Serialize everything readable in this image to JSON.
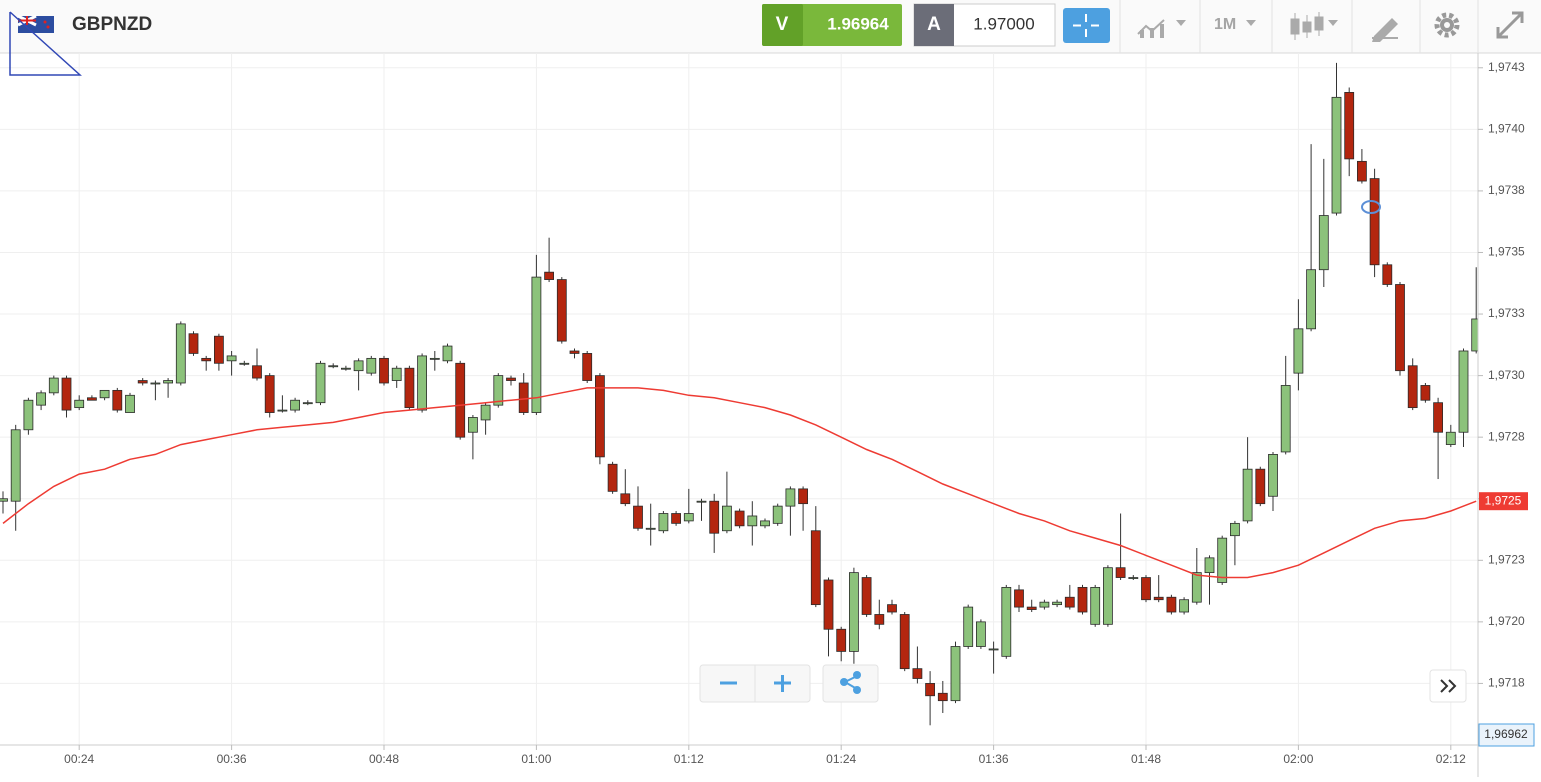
{
  "header": {
    "symbol": "GBPNZD",
    "sell_label": "V",
    "sell_price": "1.96964",
    "buy_label": "A",
    "buy_price": "1.97000",
    "timeframe": "1M"
  },
  "chart_data": {
    "type": "candlestick",
    "x": [
      "00:18",
      "00:19",
      "00:20",
      "00:21",
      "00:22",
      "00:23",
      "00:24",
      "00:25",
      "00:26",
      "00:27",
      "00:28",
      "00:29",
      "00:30",
      "00:31",
      "00:32",
      "00:33",
      "00:34",
      "00:35",
      "00:36",
      "00:37",
      "00:38",
      "00:39",
      "00:40",
      "00:41",
      "00:42",
      "00:43",
      "00:44",
      "00:45",
      "00:46",
      "00:47",
      "00:48",
      "00:49",
      "00:50",
      "00:51",
      "00:52",
      "00:53",
      "00:54",
      "00:55",
      "00:56",
      "00:57",
      "00:58",
      "00:59",
      "01:00",
      "01:01",
      "01:02",
      "01:03",
      "01:04",
      "01:05",
      "01:06",
      "01:07",
      "01:08",
      "01:09",
      "01:10",
      "01:11",
      "01:12",
      "01:13",
      "01:14",
      "01:15",
      "01:16",
      "01:17",
      "01:18",
      "01:19",
      "01:20",
      "01:21",
      "01:22",
      "01:23",
      "01:24",
      "01:25",
      "01:26",
      "01:27",
      "01:28",
      "01:29",
      "01:30",
      "01:31",
      "01:32",
      "01:33",
      "01:34",
      "01:35",
      "01:36",
      "01:37",
      "01:38",
      "01:39",
      "01:40",
      "01:41",
      "01:42",
      "01:43",
      "01:44",
      "01:45",
      "01:46",
      "01:47",
      "01:48",
      "01:49",
      "01:50",
      "01:51",
      "01:52",
      "01:53",
      "01:54",
      "01:55",
      "01:56",
      "01:57",
      "01:58",
      "01:59",
      "02:00",
      "02:01",
      "02:02",
      "02:03",
      "02:04",
      "02:05",
      "02:06",
      "02:07",
      "02:08",
      "02:09",
      "02:10",
      "02:11",
      "02:12",
      "02:13",
      "02:14"
    ],
    "open": [
      1.97249,
      1.97249,
      1.97278,
      1.97288,
      1.97293,
      1.97299,
      1.97287,
      1.97291,
      1.97291,
      1.97294,
      1.97285,
      1.97298,
      1.97297,
      1.97297,
      1.97297,
      1.97317,
      1.97307,
      1.97316,
      1.97306,
      1.97305,
      1.97304,
      1.973,
      1.97286,
      1.97286,
      1.97289,
      1.97289,
      1.97304,
      1.97303,
      1.97302,
      1.97301,
      1.97307,
      1.97298,
      1.97303,
      1.97286,
      1.97307,
      1.97306,
      1.97305,
      1.97277,
      1.97282,
      1.97288,
      1.97299,
      1.97297,
      1.97285,
      1.97342,
      1.97339,
      1.9731,
      1.97309,
      1.973,
      1.97264,
      1.97252,
      1.97247,
      1.97238,
      1.97237,
      1.97244,
      1.97241,
      1.97249,
      1.97249,
      1.97237,
      1.97245,
      1.97239,
      1.97239,
      1.9724,
      1.97247,
      1.97254,
      1.97237,
      1.97217,
      1.97197,
      1.97188,
      1.97218,
      1.97203,
      1.97207,
      1.97203,
      1.97181,
      1.97175,
      1.97171,
      1.97168,
      1.9719,
      1.9719,
      1.97189,
      1.97186,
      1.97213,
      1.97206,
      1.97206,
      1.97207,
      1.9721,
      1.97214,
      1.97199,
      1.97199,
      1.97222,
      1.97218,
      1.97218,
      1.9721,
      1.9721,
      1.97204,
      1.97208,
      1.9722,
      1.97216,
      1.97235,
      1.97241,
      1.97262,
      1.97251,
      1.97269,
      1.97301,
      1.97319,
      1.97343,
      1.97366,
      1.97415,
      1.97387,
      1.9738,
      1.97345,
      1.97337,
      1.97304,
      1.97296,
      1.97289,
      1.97272,
      1.97277,
      1.9731
    ],
    "high": [
      1.97253,
      1.9728,
      1.97291,
      1.97294,
      1.973,
      1.973,
      1.97292,
      1.97292,
      1.97294,
      1.97295,
      1.97293,
      1.97299,
      1.97298,
      1.97299,
      1.97322,
      1.97318,
      1.97308,
      1.97317,
      1.9731,
      1.97306,
      1.97311,
      1.97301,
      1.97292,
      1.97291,
      1.9729,
      1.97306,
      1.97305,
      1.97304,
      1.97307,
      1.97308,
      1.97308,
      1.97304,
      1.97304,
      1.97309,
      1.9731,
      1.97313,
      1.97306,
      1.97284,
      1.97289,
      1.97301,
      1.973,
      1.97301,
      1.97349,
      1.97356,
      1.9734,
      1.97311,
      1.9731,
      1.97301,
      1.97265,
      1.97262,
      1.97255,
      1.97248,
      1.97245,
      1.97245,
      1.97254,
      1.9725,
      1.97252,
      1.97261,
      1.97246,
      1.97249,
      1.97242,
      1.97248,
      1.97255,
      1.97255,
      1.97247,
      1.97218,
      1.97198,
      1.97222,
      1.97219,
      1.97209,
      1.97209,
      1.97204,
      1.9719,
      1.9718,
      1.97176,
      1.97192,
      1.97207,
      1.97201,
      1.97192,
      1.97215,
      1.97215,
      1.97209,
      1.97209,
      1.97209,
      1.97215,
      1.97215,
      1.97215,
      1.97223,
      1.97244,
      1.97219,
      1.97219,
      1.97219,
      1.97211,
      1.9721,
      1.9723,
      1.97227,
      1.97235,
      1.97241,
      1.97275,
      1.97263,
      1.97269,
      1.97308,
      1.97331,
      1.97394,
      1.97388,
      1.97427,
      1.97417,
      1.97392,
      1.97384,
      1.97346,
      1.97338,
      1.97307,
      1.97297,
      1.97291,
      1.9728,
      1.97311,
      1.97344
    ],
    "low": [
      1.97244,
      1.97237,
      1.97276,
      1.97286,
      1.97292,
      1.97283,
      1.97286,
      1.9729,
      1.9729,
      1.97285,
      1.97285,
      1.97296,
      1.9729,
      1.97291,
      1.97296,
      1.97308,
      1.97302,
      1.97302,
      1.973,
      1.97304,
      1.97298,
      1.97283,
      1.97285,
      1.97285,
      1.97288,
      1.97288,
      1.97303,
      1.97302,
      1.97294,
      1.973,
      1.97296,
      1.97295,
      1.97286,
      1.97285,
      1.97302,
      1.97305,
      1.97274,
      1.97266,
      1.97276,
      1.97287,
      1.97296,
      1.97284,
      1.97284,
      1.97338,
      1.97313,
      1.97307,
      1.97297,
      1.97264,
      1.97252,
      1.97247,
      1.97237,
      1.97231,
      1.97236,
      1.97239,
      1.9724,
      1.97241,
      1.97228,
      1.97236,
      1.97238,
      1.97231,
      1.97238,
      1.97239,
      1.97235,
      1.97237,
      1.97206,
      1.97186,
      1.97184,
      1.97183,
      1.97202,
      1.97197,
      1.97203,
      1.9718,
      1.97175,
      1.97158,
      1.97163,
      1.97167,
      1.97189,
      1.97189,
      1.97179,
      1.97185,
      1.97204,
      1.97204,
      1.97205,
      1.97206,
      1.97205,
      1.97203,
      1.97198,
      1.97198,
      1.97217,
      1.97217,
      1.97208,
      1.97208,
      1.97203,
      1.97203,
      1.97207,
      1.97207,
      1.97215,
      1.97223,
      1.9724,
      1.97247,
      1.97245,
      1.97268,
      1.97294,
      1.97318,
      1.97336,
      1.97365,
      1.97381,
      1.97378,
      1.9734,
      1.97336,
      1.973,
      1.97286,
      1.97289,
      1.97258,
      1.97271,
      1.97271,
      1.97309
    ],
    "close": [
      1.9725,
      1.97278,
      1.9729,
      1.97293,
      1.97299,
      1.97286,
      1.9729,
      1.9729,
      1.97294,
      1.97286,
      1.97292,
      1.97297,
      1.97297,
      1.97298,
      1.97321,
      1.97309,
      1.97306,
      1.97305,
      1.97308,
      1.97305,
      1.97299,
      1.97285,
      1.97286,
      1.9729,
      1.97289,
      1.97305,
      1.97304,
      1.97303,
      1.97306,
      1.97307,
      1.97297,
      1.97303,
      1.97287,
      1.97308,
      1.97307,
      1.97312,
      1.97275,
      1.97283,
      1.97288,
      1.973,
      1.97298,
      1.97285,
      1.9734,
      1.97339,
      1.97314,
      1.97309,
      1.97298,
      1.97267,
      1.97253,
      1.97248,
      1.97238,
      1.97238,
      1.97244,
      1.9724,
      1.97244,
      1.97249,
      1.97236,
      1.97247,
      1.97239,
      1.97243,
      1.97241,
      1.97247,
      1.97254,
      1.97248,
      1.97207,
      1.97197,
      1.97188,
      1.9722,
      1.97203,
      1.97199,
      1.97204,
      1.97181,
      1.97177,
      1.9717,
      1.97168,
      1.9719,
      1.97206,
      1.972,
      1.97189,
      1.97214,
      1.97206,
      1.97205,
      1.97208,
      1.97208,
      1.97206,
      1.97204,
      1.97214,
      1.97222,
      1.97218,
      1.97218,
      1.97209,
      1.97209,
      1.97204,
      1.97209,
      1.9722,
      1.97226,
      1.97234,
      1.9724,
      1.97262,
      1.97248,
      1.97268,
      1.97296,
      1.97319,
      1.97343,
      1.97365,
      1.97413,
      1.97388,
      1.97379,
      1.97345,
      1.97337,
      1.97302,
      1.97287,
      1.9729,
      1.97277,
      1.97277,
      1.9731,
      1.97323
    ],
    "up_color": "#8cc27b",
    "down_color": "#b3260f",
    "moving_average": {
      "color": "#ee3b33",
      "label": "1,9725",
      "x": [
        "00:18",
        "00:20",
        "00:22",
        "00:24",
        "00:26",
        "00:28",
        "00:30",
        "00:32",
        "00:34",
        "00:36",
        "00:38",
        "00:40",
        "00:42",
        "00:44",
        "00:46",
        "00:48",
        "00:50",
        "00:52",
        "00:54",
        "00:56",
        "00:58",
        "01:00",
        "01:02",
        "01:04",
        "01:06",
        "01:08",
        "01:10",
        "01:12",
        "01:14",
        "01:16",
        "01:18",
        "01:20",
        "01:22",
        "01:24",
        "01:26",
        "01:28",
        "01:30",
        "01:32",
        "01:34",
        "01:36",
        "01:38",
        "01:40",
        "01:42",
        "01:44",
        "01:46",
        "01:48",
        "01:50",
        "01:52",
        "01:54",
        "01:56",
        "01:58",
        "02:00",
        "02:02",
        "02:04",
        "02:06",
        "02:08",
        "02:10",
        "02:12",
        "02:14"
      ],
      "values": [
        1.9724,
        1.97248,
        1.97255,
        1.9726,
        1.97262,
        1.97266,
        1.97268,
        1.97272,
        1.97274,
        1.97276,
        1.97278,
        1.97279,
        1.9728,
        1.97281,
        1.97283,
        1.97285,
        1.97286,
        1.97287,
        1.97288,
        1.97289,
        1.9729,
        1.97291,
        1.97293,
        1.97295,
        1.97295,
        1.97295,
        1.97294,
        1.97292,
        1.97291,
        1.97289,
        1.97287,
        1.97284,
        1.9728,
        1.97275,
        1.9727,
        1.97266,
        1.97261,
        1.97256,
        1.97252,
        1.97248,
        1.97244,
        1.97241,
        1.97237,
        1.97234,
        1.97231,
        1.97227,
        1.97223,
        1.97219,
        1.97218,
        1.97218,
        1.9722,
        1.97223,
        1.97228,
        1.97233,
        1.97238,
        1.97241,
        1.97242,
        1.97245,
        1.97249
      ]
    },
    "price_tag": "1,96962",
    "xlim": [
      "00:17",
      "02:15"
    ],
    "xticks": [
      "00:24",
      "00:36",
      "00:48",
      "01:00",
      "01:12",
      "01:24",
      "01:36",
      "01:48",
      "02:00",
      "02:12"
    ],
    "ylim": [
      1.9715,
      1.97431
    ],
    "yticks": [
      {
        "value": 1.97425,
        "label": "1,9743"
      },
      {
        "value": 1.974,
        "label": "1,9740"
      },
      {
        "value": 1.97375,
        "label": "1,9738"
      },
      {
        "value": 1.9735,
        "label": "1,9735"
      },
      {
        "value": 1.97325,
        "label": "1,9733"
      },
      {
        "value": 1.973,
        "label": "1,9730"
      },
      {
        "value": 1.97275,
        "label": "1,9728"
      },
      {
        "value": 1.9725,
        "label": "1,9725"
      },
      {
        "value": 1.97225,
        "label": "1,9723"
      },
      {
        "value": 1.972,
        "label": "1,9720"
      },
      {
        "value": 1.97175,
        "label": "1,9718"
      }
    ],
    "grid": true
  }
}
